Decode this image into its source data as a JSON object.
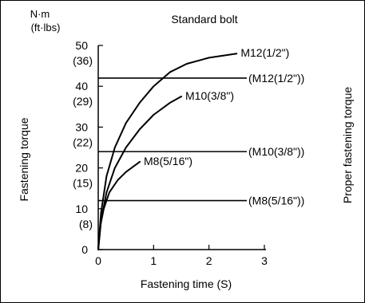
{
  "chart_data": {
    "type": "line",
    "title": "Standard bolt",
    "xlabel": "Fastening time (S)",
    "ylabel": "Fastening torque",
    "ylabel_right": "Proper fastening torque",
    "yunit_primary": "N·m",
    "yunit_secondary": "(ft·lbs)",
    "xlim": [
      0,
      3
    ],
    "ylim": [
      0,
      50
    ],
    "x_ticks": [
      {
        "value": 0,
        "label": "0"
      },
      {
        "value": 1,
        "label": "1"
      },
      {
        "value": 2,
        "label": "2"
      },
      {
        "value": 3,
        "label": "3"
      }
    ],
    "y_ticks": [
      {
        "value": 0,
        "label": "0",
        "secondary": ""
      },
      {
        "value": 10,
        "label": "10",
        "secondary": "(8)"
      },
      {
        "value": 20,
        "label": "20",
        "secondary": "(15)"
      },
      {
        "value": 30,
        "label": "30",
        "secondary": "(22)"
      },
      {
        "value": 40,
        "label": "40",
        "secondary": "(29)"
      },
      {
        "value": 50,
        "label": "50",
        "secondary": "(36)"
      }
    ],
    "series": [
      {
        "name": "M12(1/2\")",
        "x": [
          0,
          0.05,
          0.15,
          0.3,
          0.5,
          0.75,
          1.0,
          1.3,
          1.6,
          2.0,
          2.5
        ],
        "y": [
          0,
          9,
          18,
          25,
          31,
          36,
          40,
          43.5,
          45.5,
          47,
          48
        ]
      },
      {
        "name": "M10(3/8\")",
        "x": [
          0,
          0.05,
          0.15,
          0.3,
          0.5,
          0.75,
          1.0,
          1.3,
          1.5
        ],
        "y": [
          0,
          7,
          14,
          20,
          25,
          29.5,
          33,
          36,
          37.5
        ]
      },
      {
        "name": "M8(5/16\")",
        "x": [
          0,
          0.04,
          0.1,
          0.2,
          0.35,
          0.5,
          0.75
        ],
        "y": [
          0,
          6,
          10,
          14,
          17,
          19,
          21.5
        ]
      }
    ],
    "reference_lines": [
      {
        "label": "(M12(1/2\"))",
        "y": 42
      },
      {
        "label": "(M10(3/8\"))",
        "y": 24
      },
      {
        "label": "(M8(5/16\"))",
        "y": 12
      }
    ],
    "colors": {
      "line": "#000000",
      "background": "#ffffff"
    }
  }
}
